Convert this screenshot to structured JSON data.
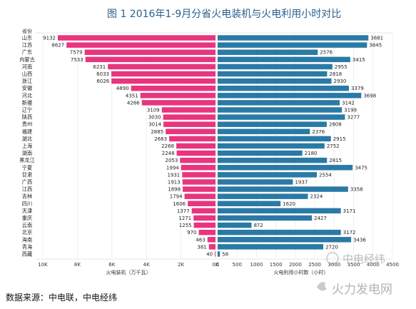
{
  "chart_data": {
    "type": "bar",
    "title": "图 1 2016年1-9月分省火电装机与火电利用小时对比",
    "category_header": "省份",
    "categories": [
      "山东",
      "江苏",
      "广东",
      "内蒙古",
      "河南",
      "山西",
      "浙江",
      "安徽",
      "河北",
      "新疆",
      "辽宁",
      "陕西",
      "贵州",
      "福建",
      "湖北",
      "上海",
      "湖南",
      "黑龙江",
      "宁夏",
      "甘肃",
      "广西",
      "江西",
      "吉林",
      "四川",
      "天津",
      "重庆",
      "云南",
      "北京",
      "海南",
      "青海",
      "西藏"
    ],
    "series": [
      {
        "name": "火电装机（万千瓦）",
        "color": "#e8357e",
        "direction": "left",
        "values": [
          9132,
          8627,
          7579,
          7533,
          6231,
          6033,
          6026,
          4890,
          4351,
          4266,
          3109,
          3030,
          3014,
          2885,
          2683,
          2268,
          2248,
          2053,
          1994,
          1931,
          1913,
          1898,
          1794,
          1606,
          1377,
          1271,
          1255,
          970,
          463,
          381,
          40
        ],
        "xlim": [
          0,
          10000
        ],
        "ticks": [
          "10K",
          "8K",
          "6K",
          "4K",
          "2K",
          "0K"
        ]
      },
      {
        "name": "火电利用小时数（小时）",
        "color": "#2a7aa6",
        "direction": "right",
        "values": [
          3881,
          3845,
          2576,
          3415,
          2955,
          2818,
          2930,
          3379,
          3698,
          3142,
          3199,
          3277,
          2808,
          2376,
          2915,
          2752,
          2180,
          2815,
          3475,
          2554,
          1937,
          3358,
          2324,
          1620,
          3171,
          2427,
          872,
          3172,
          3436,
          2720,
          58
        ],
        "xlim": [
          0,
          4500
        ],
        "ticks": [
          "0",
          "500",
          "1000",
          "1500",
          "2000",
          "2500",
          "3000",
          "3500",
          "4000",
          "4500"
        ]
      }
    ]
  },
  "source": "数据来源：中电联，中电经纬",
  "watermarks": [
    "中电经纬",
    "火力发电网"
  ]
}
